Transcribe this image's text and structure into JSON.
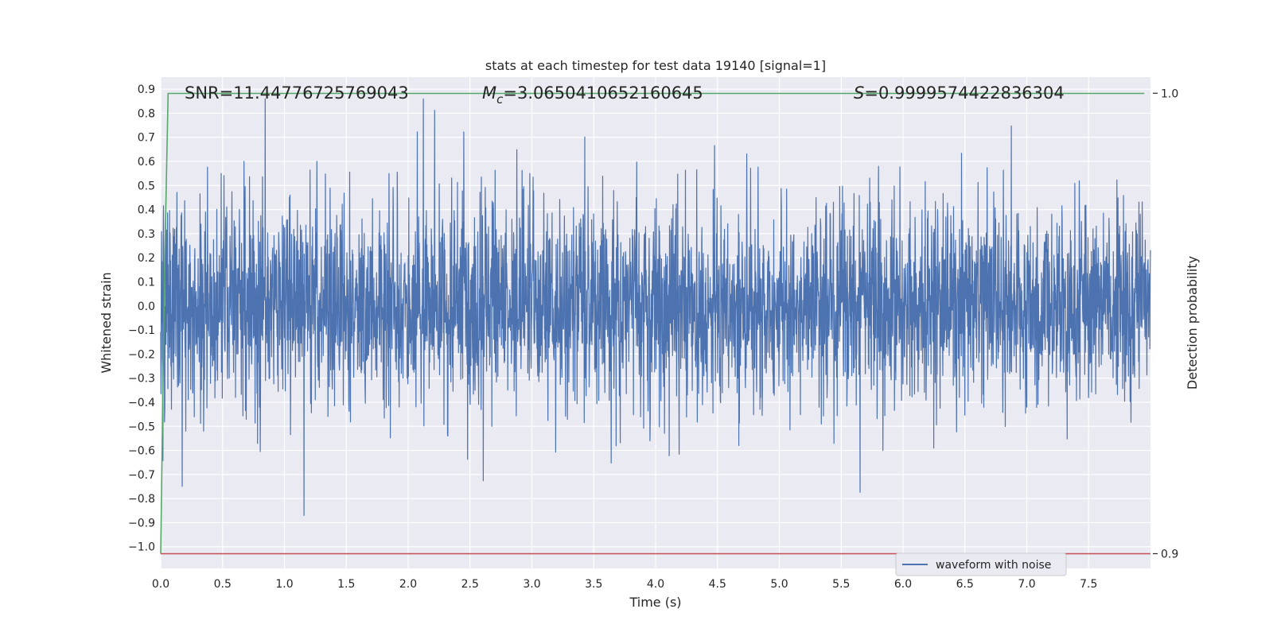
{
  "chart_data": {
    "type": "line",
    "title": "stats at each timestep for test data 19140 [signal=1]",
    "xlabel": "Time (s)",
    "ylabel": "Whitened strain",
    "y2label": "Detection probability",
    "xlim": [
      0.0,
      8.0
    ],
    "ylim": [
      -1.09,
      0.95
    ],
    "y2lim": [
      0.8968,
      1.0035
    ],
    "x_ticks": [
      0.0,
      0.5,
      1.0,
      1.5,
      2.0,
      2.5,
      3.0,
      3.5,
      4.0,
      4.5,
      5.0,
      5.5,
      6.0,
      6.5,
      7.0,
      7.5
    ],
    "x_tick_labels": [
      "0.0",
      "0.5",
      "1.0",
      "1.5",
      "2.0",
      "2.5",
      "3.0",
      "3.5",
      "4.0",
      "4.5",
      "5.0",
      "5.5",
      "6.0",
      "6.5",
      "7.0",
      "7.5"
    ],
    "y_ticks": [
      0.9,
      0.8,
      0.7,
      0.6,
      0.5,
      0.4,
      0.3,
      0.2,
      0.1,
      0.0,
      -0.1,
      -0.2,
      -0.3,
      -0.4,
      -0.5,
      -0.6,
      -0.7,
      -0.8,
      -0.9,
      -1.0
    ],
    "y_tick_labels": [
      "0.9",
      "0.8",
      "0.7",
      "0.6",
      "0.5",
      "0.4",
      "0.3",
      "0.2",
      "0.1",
      "0.0",
      "−0.1",
      "−0.2",
      "−0.3",
      "−0.4",
      "−0.5",
      "−0.6",
      "−0.7",
      "−0.8",
      "−0.9",
      "−1.0"
    ],
    "y2_ticks": [
      1.0,
      0.9
    ],
    "y2_tick_labels": [
      "1.0",
      "0.9"
    ],
    "grid": true,
    "legend": {
      "placement": "lower right",
      "entries": [
        "waveform with noise"
      ]
    },
    "annotations": {
      "snr": "SNR=11.44776725769043",
      "mc_symbol": "M",
      "mc_sub": "c",
      "mc_value": "=3.0650410652160645",
      "s_symbol": "S",
      "s_value": "=0.9999574422836304"
    },
    "series": [
      {
        "name": "waveform with noise",
        "color": "#4c72b0",
        "style": "dense noisy waveform, roughly zero-mean",
        "x_range": [
          0.0,
          8.0
        ],
        "y_min": -1.0,
        "y_max": 0.86
      },
      {
        "color": "#55a868",
        "axis": "right",
        "x": [
          0.0,
          0.03,
          0.06,
          7.95
        ],
        "y": [
          0.9,
          0.96,
          0.9999574,
          0.9999574
        ]
      },
      {
        "color": "#c44e52",
        "axis": "right",
        "x": [
          0.0,
          8.0
        ],
        "y": [
          0.9,
          0.9
        ]
      }
    ]
  }
}
